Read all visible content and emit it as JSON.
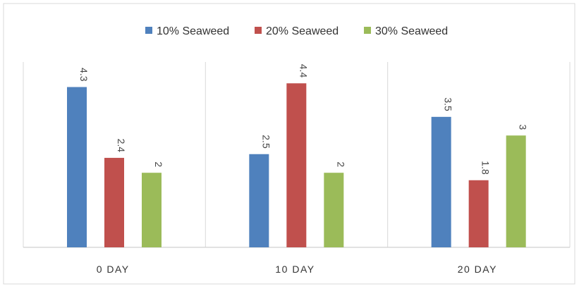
{
  "chart_data": {
    "type": "bar",
    "categories": [
      "0 DAY",
      "10 DAY",
      "20 DAY"
    ],
    "series": [
      {
        "name": "10% Seaweed",
        "color": "#4f81bd",
        "values": [
          4.3,
          2.5,
          3.5
        ],
        "labels": [
          "4.3",
          "2.5",
          "3.5"
        ]
      },
      {
        "name": "20% Seaweed",
        "color": "#c0504d",
        "values": [
          2.4,
          4.4,
          1.8
        ],
        "labels": [
          "2.4",
          "4.4",
          "1.8"
        ]
      },
      {
        "name": "30% Seaweed",
        "color": "#9bbb59",
        "values": [
          2,
          2,
          3
        ],
        "labels": [
          "2",
          "2",
          "3"
        ]
      }
    ],
    "ylim": [
      0,
      5
    ],
    "grid": "vertical category dividers",
    "legend_position": "top-center"
  }
}
